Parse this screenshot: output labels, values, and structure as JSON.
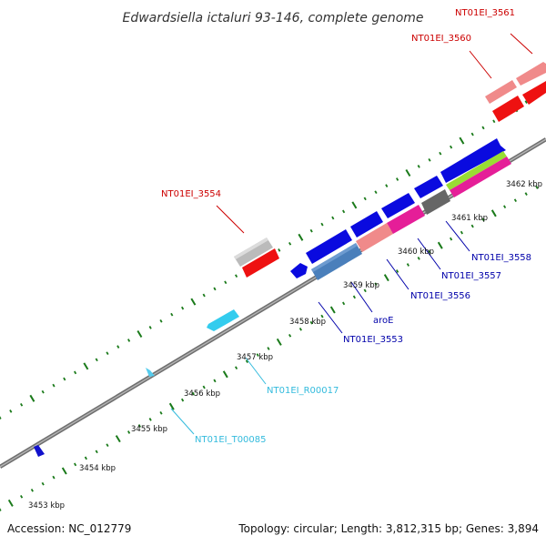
{
  "title": "Edwardsiella ictaluri 93-146, complete genome",
  "footer": {
    "accession": "Accession: NC_012779",
    "topology": "Topology: circular; Length: 3,812,315 bp; Genes: 3,894"
  },
  "colors": {
    "backbone": "#8c8c8c",
    "tick": "#1a7a1a",
    "label_red": "#cc0000",
    "label_blue": "#0000aa",
    "label_cyan": "#33bbdd"
  },
  "scale_labels": [
    "3453 kbp",
    "3454 kbp",
    "3455 kbp",
    "3456 kbp",
    "3457 kbp",
    "3458 kbp",
    "3459 kbp",
    "3460 kbp",
    "3461 kbp",
    "3462 kbp"
  ],
  "gene_labels": {
    "NT01EI_3561": "NT01EI_3561",
    "NT01EI_3560": "NT01EI_3560",
    "NT01EI_3554": "NT01EI_3554",
    "NT01EI_3558": "NT01EI_3558",
    "NT01EI_3557": "NT01EI_3557",
    "NT01EI_3556": "NT01EI_3556",
    "aroE": "aroE",
    "NT01EI_3553": "NT01EI_3553",
    "NT01EI_R00017": "NT01EI_R00017",
    "NT01EI_T00085": "NT01EI_T00085"
  }
}
